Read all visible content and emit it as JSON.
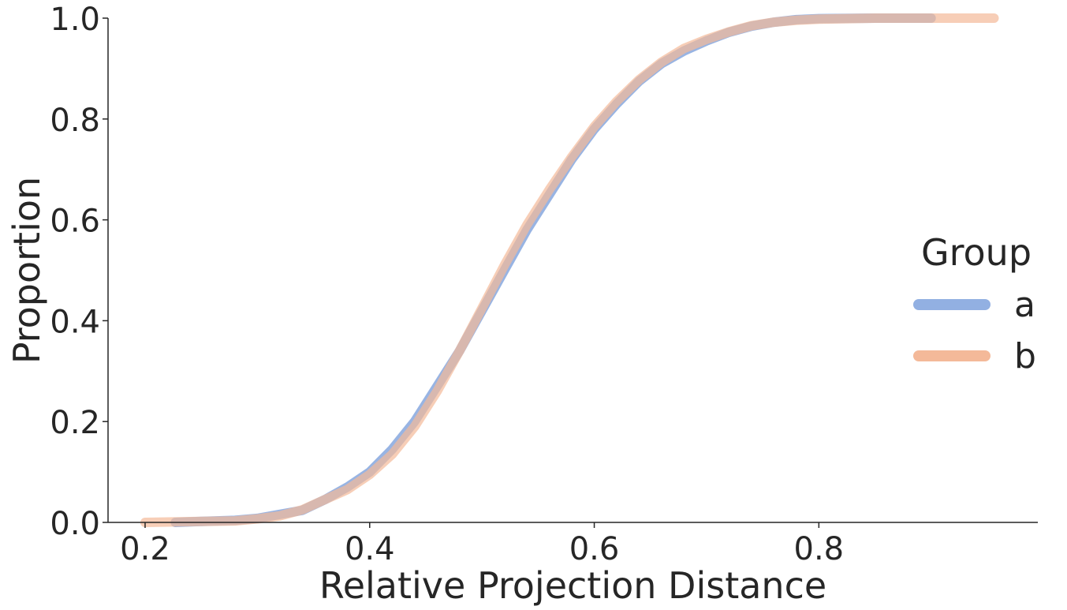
{
  "chart_data": {
    "type": "line",
    "subtype": "ecdf",
    "xlabel": "Relative Projection Distance",
    "ylabel": "Proportion",
    "xlim": [
      0.167,
      0.995
    ],
    "ylim": [
      0.0,
      1.0
    ],
    "x_ticks": [
      {
        "value": 0.2,
        "label": "0.2"
      },
      {
        "value": 0.4,
        "label": "0.4"
      },
      {
        "value": 0.6,
        "label": "0.6"
      },
      {
        "value": 0.8,
        "label": "0.8"
      }
    ],
    "y_ticks": [
      {
        "value": 0.0,
        "label": "0.0"
      },
      {
        "value": 0.2,
        "label": "0.2"
      },
      {
        "value": 0.4,
        "label": "0.4"
      },
      {
        "value": 0.6,
        "label": "0.6"
      },
      {
        "value": 0.8,
        "label": "0.8"
      },
      {
        "value": 1.0,
        "label": "1.0"
      }
    ],
    "grid": false,
    "legend": {
      "title": "Group",
      "placement": "right"
    },
    "series": [
      {
        "name": "a",
        "color": "#92B0E2",
        "x": [
          0.227,
          0.25,
          0.28,
          0.3,
          0.32,
          0.34,
          0.36,
          0.38,
          0.4,
          0.42,
          0.44,
          0.46,
          0.48,
          0.5,
          0.52,
          0.54,
          0.56,
          0.58,
          0.6,
          0.62,
          0.64,
          0.66,
          0.68,
          0.7,
          0.72,
          0.74,
          0.76,
          0.78,
          0.8,
          0.85,
          0.9
        ],
        "y": [
          0.0,
          0.002,
          0.004,
          0.008,
          0.016,
          0.024,
          0.045,
          0.07,
          0.1,
          0.145,
          0.2,
          0.27,
          0.34,
          0.42,
          0.5,
          0.58,
          0.65,
          0.72,
          0.78,
          0.83,
          0.875,
          0.91,
          0.935,
          0.955,
          0.972,
          0.984,
          0.992,
          0.997,
          0.999,
          1.0,
          1.0
        ]
      },
      {
        "name": "b",
        "color": "#F4B999",
        "x": [
          0.2,
          0.25,
          0.28,
          0.3,
          0.32,
          0.34,
          0.36,
          0.38,
          0.4,
          0.42,
          0.44,
          0.46,
          0.48,
          0.5,
          0.52,
          0.54,
          0.56,
          0.58,
          0.6,
          0.62,
          0.64,
          0.66,
          0.68,
          0.7,
          0.72,
          0.74,
          0.76,
          0.78,
          0.8,
          0.85,
          0.9,
          0.956
        ],
        "y": [
          0.0,
          0.002,
          0.003,
          0.007,
          0.013,
          0.025,
          0.045,
          0.065,
          0.095,
          0.135,
          0.19,
          0.26,
          0.34,
          0.425,
          0.51,
          0.59,
          0.66,
          0.725,
          0.785,
          0.835,
          0.878,
          0.913,
          0.94,
          0.958,
          0.973,
          0.985,
          0.992,
          0.996,
          0.998,
          1.0,
          1.0,
          1.0
        ]
      }
    ],
    "overlap_color": "#9A98BE"
  }
}
